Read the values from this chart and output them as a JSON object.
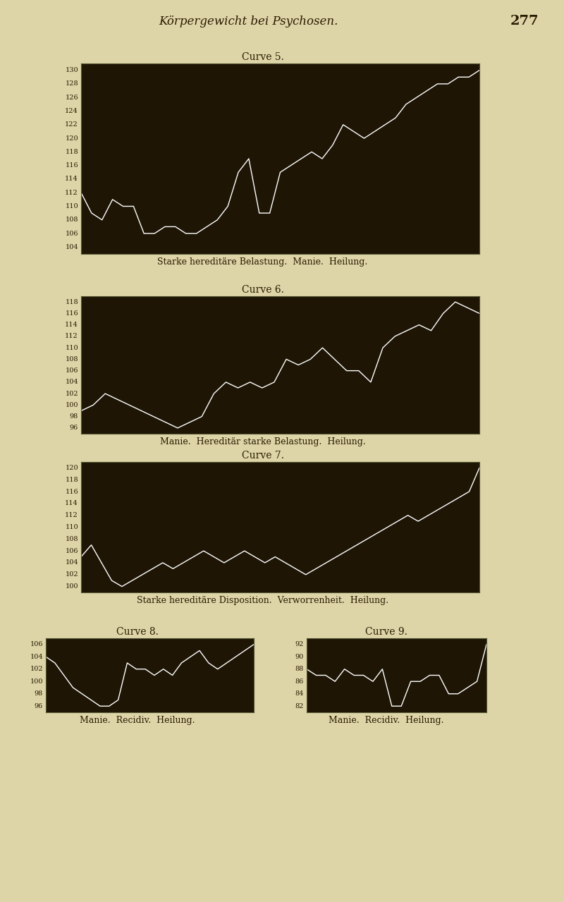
{
  "page_title": "Körpergewicht bei Psychosen.",
  "page_number": "277",
  "bg_color": "#1e1505",
  "page_bg": "#ddd5a8",
  "line_color": "white",
  "curve5": {
    "title": "Curve 5.",
    "yticks": [
      104,
      106,
      108,
      110,
      112,
      114,
      116,
      118,
      120,
      122,
      124,
      126,
      128,
      130
    ],
    "ylim": [
      103,
      131
    ],
    "caption": "Starke hereditäre Belastung.  Manie.  Heilung.",
    "data": [
      112,
      109,
      108,
      111,
      110,
      110,
      106,
      106,
      107,
      107,
      106,
      106,
      107,
      108,
      110,
      115,
      117,
      109,
      109,
      115,
      116,
      117,
      118,
      117,
      119,
      122,
      121,
      120,
      121,
      122,
      123,
      125,
      126,
      127,
      128,
      128,
      129,
      129,
      130
    ]
  },
  "curve6": {
    "title": "Curve 6.",
    "yticks": [
      96,
      98,
      100,
      102,
      104,
      106,
      108,
      110,
      112,
      114,
      116,
      118
    ],
    "ylim": [
      95,
      119
    ],
    "caption": "Manie.  Hereditär starke Belastung.  Heilung.",
    "data": [
      99,
      100,
      102,
      101,
      100,
      99,
      98,
      97,
      96,
      97,
      98,
      102,
      104,
      103,
      104,
      103,
      104,
      108,
      107,
      108,
      110,
      108,
      106,
      106,
      104,
      110,
      112,
      113,
      114,
      113,
      116,
      118,
      117,
      116
    ]
  },
  "curve7": {
    "title": "Curve 7.",
    "yticks": [
      100,
      102,
      104,
      106,
      108,
      110,
      112,
      114,
      116,
      118,
      120
    ],
    "ylim": [
      99,
      121
    ],
    "caption": "Starke hereditäre Disposition.  Verworrenheit.  Heilung.",
    "data": [
      105,
      107,
      104,
      101,
      100,
      101,
      102,
      103,
      104,
      103,
      104,
      105,
      106,
      105,
      104,
      105,
      106,
      105,
      104,
      105,
      104,
      103,
      102,
      103,
      104,
      105,
      106,
      107,
      108,
      109,
      110,
      111,
      112,
      111,
      112,
      113,
      114,
      115,
      116,
      120
    ]
  },
  "curve8": {
    "title": "Curve 8.",
    "yticks": [
      96,
      98,
      100,
      102,
      104,
      106
    ],
    "ylim": [
      95,
      107
    ],
    "caption": "Manie.  Recidiv.  Heilung.",
    "data": [
      104,
      103,
      101,
      99,
      98,
      97,
      96,
      96,
      97,
      103,
      102,
      102,
      101,
      102,
      101,
      103,
      104,
      105,
      103,
      102,
      103,
      104,
      105,
      106
    ]
  },
  "curve9": {
    "title": "Curve 9.",
    "yticks": [
      82,
      84,
      86,
      88,
      90,
      92
    ],
    "ylim": [
      81,
      93
    ],
    "caption": "Manie.  Recidiv.  Heilung.",
    "data": [
      88,
      87,
      87,
      86,
      88,
      87,
      87,
      86,
      88,
      82,
      82,
      86,
      86,
      87,
      87,
      84,
      84,
      85,
      86,
      92
    ]
  }
}
